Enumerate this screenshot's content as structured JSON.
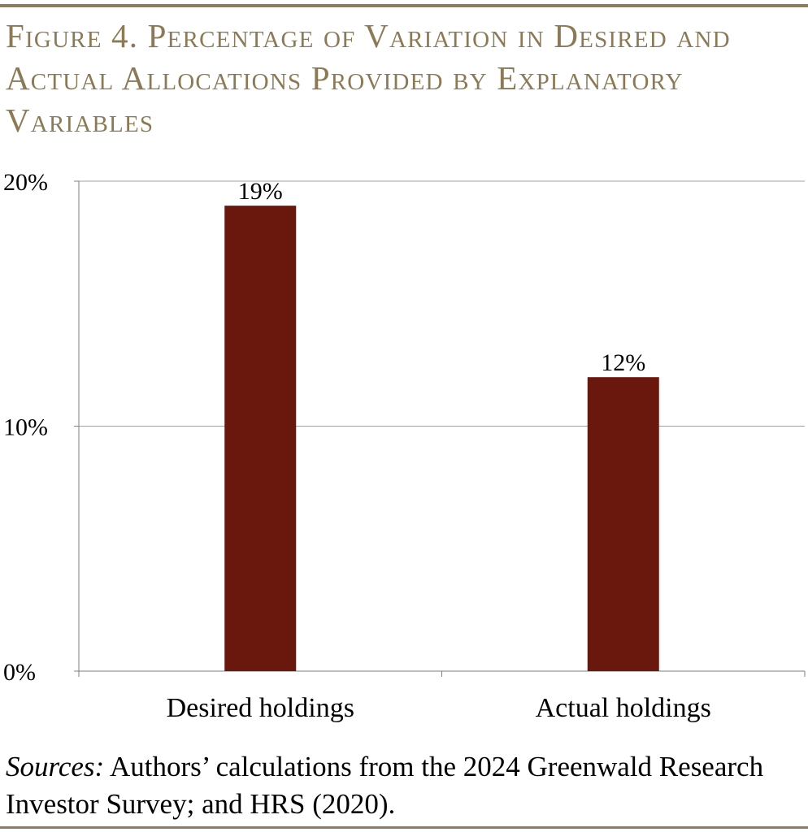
{
  "figure": {
    "title": "Figure 4. Percentage of Variation in Desired and Actual Allocations Provided by Explanatory Variables",
    "sources_label": "Sources:",
    "sources_text": " Authors’ calculations from the 2024 Greenwald Research Investor Survey; and HRS (2020)."
  },
  "colors": {
    "bar": "#6a170d",
    "gridline": "#a0a0a0",
    "rule": "#8b7d5e",
    "title": "#8b7a55"
  },
  "chart_data": {
    "type": "bar",
    "title": "",
    "xlabel": "",
    "ylabel": "",
    "categories": [
      "Desired holdings",
      "Actual holdings"
    ],
    "values": [
      19,
      12
    ],
    "data_labels": [
      "19%",
      "12%"
    ],
    "ylim": [
      0,
      20
    ],
    "yticks": [
      0,
      10,
      20
    ],
    "ytick_labels": [
      "0%",
      "10%",
      "20%"
    ],
    "grid": true,
    "legend": "none"
  }
}
